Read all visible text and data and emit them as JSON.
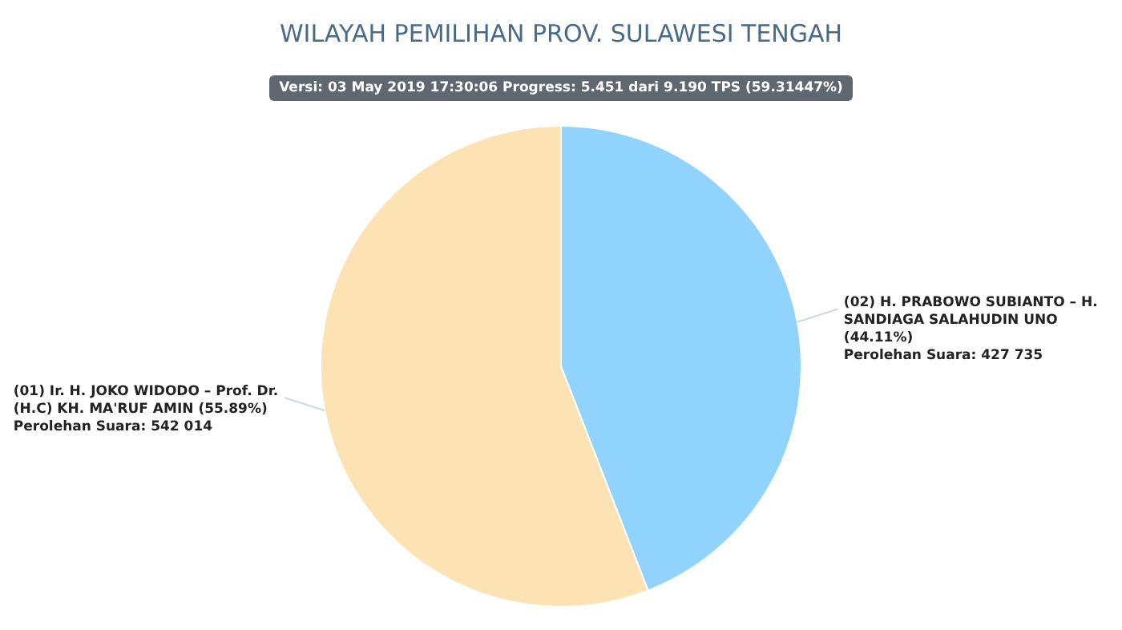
{
  "chart_data": {
    "type": "pie",
    "title": "WILAYAH PEMILIHAN PROV. SULAWESI TENGAH",
    "subtitle": "Versi: 03 May 2019 17:30:06 Progress: 5.451 dari 9.190 TPS (59.31447%)",
    "categories": [
      "(02) H. PRABOWO SUBIANTO – H. SANDIAGA SALAHUDIN UNO (44.11%)",
      "(01) Ir. H. JOKO WIDODO – Prof. Dr. (H.C) KH. MA'RUF AMIN (55.89%)"
    ],
    "values": [
      427735,
      542014
    ],
    "value_labels": [
      "Perolehan Suara: 427 735",
      "Perolehan Suara: 542 014"
    ],
    "colors": [
      "#90d4fd",
      "#fde3b3"
    ]
  }
}
